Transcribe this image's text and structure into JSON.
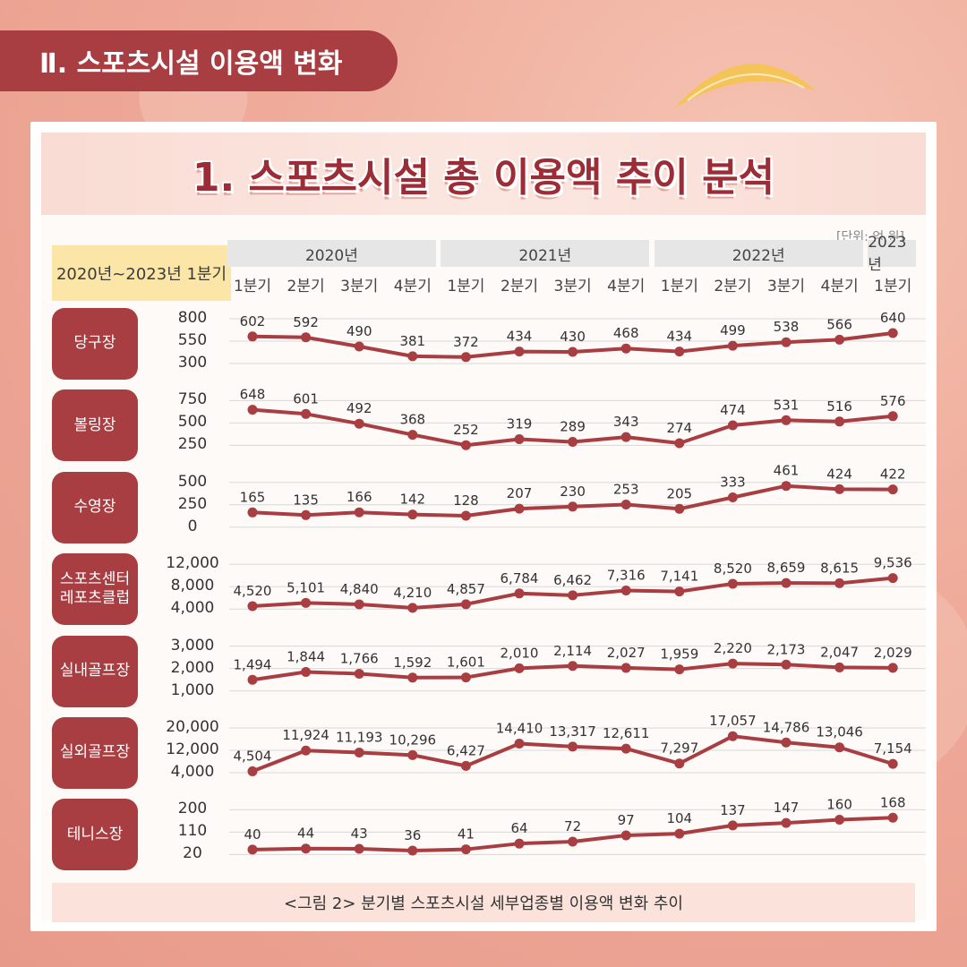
{
  "header": {
    "section_title": "Ⅱ. 스포츠시설 이용액 변화"
  },
  "panel": {
    "title": "1. 스포츠시설 총 이용액 추이 분석",
    "unit": "[단위: 억 원]",
    "period_label": "2020년~2023년 1분기",
    "caption": "<그림 2> 분기별 스포츠시설 세부업종별 이용액 변화 추이"
  },
  "colors": {
    "accent": "#a83e42",
    "line": "#a83e42",
    "period_bg": "#fbe6a8",
    "year_bg": "#e6e6e6"
  },
  "chart_data": {
    "type": "line",
    "years": [
      "2020년",
      "2021년",
      "2022년",
      "2023년"
    ],
    "x": [
      "1분기",
      "2분기",
      "3분기",
      "4분기",
      "1분기",
      "2분기",
      "3분기",
      "4분기",
      "1분기",
      "2분기",
      "3분기",
      "4분기",
      "1분기"
    ],
    "series": [
      {
        "name": "당구장",
        "yticks": [
          "800",
          "550",
          "300"
        ],
        "ylim": [
          300,
          800
        ],
        "values": [
          602,
          592,
          490,
          381,
          372,
          434,
          430,
          468,
          434,
          499,
          538,
          566,
          640
        ],
        "labels": [
          "602",
          "592",
          "490",
          "381",
          "372",
          "434",
          "430",
          "468",
          "434",
          "499",
          "538",
          "566",
          "640"
        ]
      },
      {
        "name": "볼링장",
        "yticks": [
          "750",
          "500",
          "250"
        ],
        "ylim": [
          250,
          750
        ],
        "values": [
          648,
          601,
          492,
          368,
          252,
          319,
          289,
          343,
          274,
          474,
          531,
          516,
          576
        ],
        "labels": [
          "648",
          "601",
          "492",
          "368",
          "252",
          "319",
          "289",
          "343",
          "274",
          "474",
          "531",
          "516",
          "576"
        ]
      },
      {
        "name": "수영장",
        "yticks": [
          "500",
          "250",
          "0"
        ],
        "ylim": [
          0,
          500
        ],
        "values": [
          165,
          135,
          166,
          142,
          128,
          207,
          230,
          253,
          205,
          333,
          461,
          424,
          422
        ],
        "labels": [
          "165",
          "135",
          "166",
          "142",
          "128",
          "207",
          "230",
          "253",
          "205",
          "333",
          "461",
          "424",
          "422"
        ]
      },
      {
        "name": "스포츠센터\n레포츠클럽",
        "yticks": [
          "12,000",
          "8,000",
          "4,000"
        ],
        "ylim": [
          4000,
          12000
        ],
        "values": [
          4520,
          5101,
          4840,
          4210,
          4857,
          6784,
          6462,
          7316,
          7141,
          8520,
          8659,
          8615,
          9536
        ],
        "labels": [
          "4,520",
          "5,101",
          "4,840",
          "4,210",
          "4,857",
          "6,784",
          "6,462",
          "7,316",
          "7,141",
          "8,520",
          "8,659",
          "8,615",
          "9,536"
        ]
      },
      {
        "name": "실내골프장",
        "yticks": [
          "3,000",
          "2,000",
          "1,000"
        ],
        "ylim": [
          1000,
          3000
        ],
        "values": [
          1494,
          1844,
          1766,
          1592,
          1601,
          2010,
          2114,
          2027,
          1959,
          2220,
          2173,
          2047,
          2029
        ],
        "labels": [
          "1,494",
          "1,844",
          "1,766",
          "1,592",
          "1,601",
          "2,010",
          "2,114",
          "2,027",
          "1,959",
          "2,220",
          "2,173",
          "2,047",
          "2,029"
        ]
      },
      {
        "name": "실외골프장",
        "yticks": [
          "20,000",
          "12,000",
          "4,000"
        ],
        "ylim": [
          4000,
          20000
        ],
        "values": [
          4504,
          11924,
          11193,
          10296,
          6427,
          14410,
          13317,
          12611,
          7297,
          17057,
          14786,
          13046,
          7154
        ],
        "labels": [
          "4,504",
          "11,924",
          "11,193",
          "10,296",
          "6,427",
          "14,410",
          "13,317",
          "12,611",
          "7,297",
          "17,057",
          "14,786",
          "13,046",
          "7,154"
        ]
      },
      {
        "name": "테니스장",
        "yticks": [
          "200",
          "110",
          "20"
        ],
        "ylim": [
          20,
          200
        ],
        "values": [
          40,
          44,
          43,
          36,
          41,
          64,
          72,
          97,
          104,
          137,
          147,
          160,
          168
        ],
        "labels": [
          "40",
          "44",
          "43",
          "36",
          "41",
          "64",
          "72",
          "97",
          "104",
          "137",
          "147",
          "160",
          "168"
        ]
      }
    ]
  }
}
